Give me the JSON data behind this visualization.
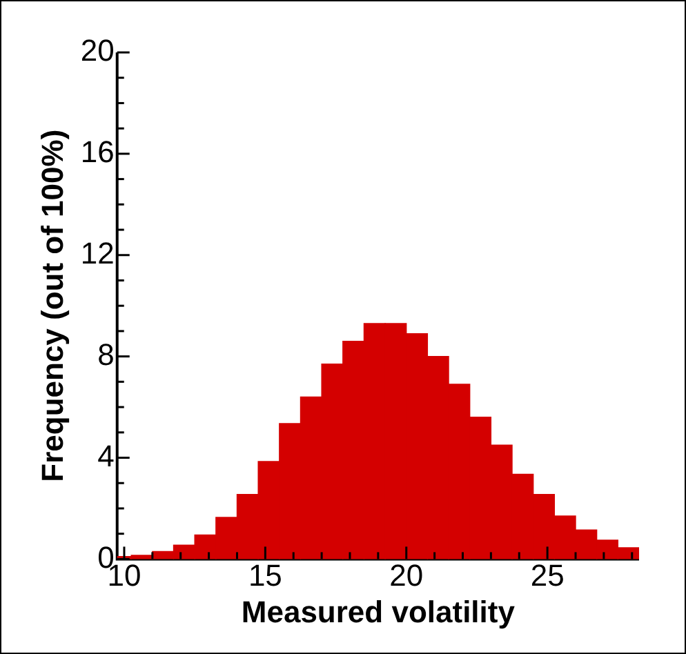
{
  "chart_data": {
    "type": "histogram",
    "xlabel": "Measured volatility",
    "ylabel": "Frequency (out of 100%)",
    "bins": [
      9.75,
      10.25,
      11,
      11.75,
      12.5,
      13.25,
      14,
      14.75,
      15.5,
      16.25,
      17,
      17.75,
      18.5,
      19.25,
      20,
      20.75,
      21.5,
      22.25,
      23,
      23.75,
      24.5,
      25.25,
      26,
      26.75,
      27.5,
      28.25
    ],
    "values": [
      0.1,
      0.15,
      0.3,
      0.55,
      0.95,
      1.65,
      2.55,
      3.85,
      5.35,
      6.4,
      7.7,
      8.6,
      9.3,
      9.3,
      8.9,
      8.0,
      6.9,
      5.6,
      4.5,
      3.35,
      2.55,
      1.7,
      1.15,
      0.75,
      0.45
    ],
    "color": "#d40000",
    "xlim": [
      9.75,
      28.25
    ],
    "xticks": [
      10,
      {
        "value": 11,
        "label": null
      },
      {
        "value": 12,
        "label": null
      },
      {
        "value": 13,
        "label": null
      },
      {
        "value": 14,
        "label": null
      },
      15,
      {
        "value": 16,
        "label": null
      },
      {
        "value": 17,
        "label": null
      },
      {
        "value": 18,
        "label": null
      },
      {
        "value": 19,
        "label": null
      },
      20,
      {
        "value": 21,
        "label": null
      },
      {
        "value": 22,
        "label": null
      },
      {
        "value": 23,
        "label": null
      },
      {
        "value": 24,
        "label": null
      },
      25,
      {
        "value": 26,
        "label": null
      },
      {
        "value": 27,
        "label": null
      },
      {
        "value": 28,
        "label": null
      }
    ],
    "ylim": [
      0,
      20
    ],
    "yticks": [
      0,
      {
        "value": 1,
        "label": null
      },
      {
        "value": 2,
        "label": null
      },
      {
        "value": 3,
        "label": null
      },
      4,
      {
        "value": 5,
        "label": null
      },
      {
        "value": 6,
        "label": null
      },
      {
        "value": 7,
        "label": null
      },
      8,
      {
        "value": 9,
        "label": null
      },
      {
        "value": 10,
        "label": null
      },
      {
        "value": 11,
        "label": null
      },
      12,
      {
        "value": 13,
        "label": null
      },
      {
        "value": 14,
        "label": null
      },
      {
        "value": 15,
        "label": null
      },
      16,
      {
        "value": 17,
        "label": null
      },
      {
        "value": 18,
        "label": null
      },
      {
        "value": 19,
        "label": null
      },
      20
    ],
    "grid": false,
    "legend": false
  }
}
